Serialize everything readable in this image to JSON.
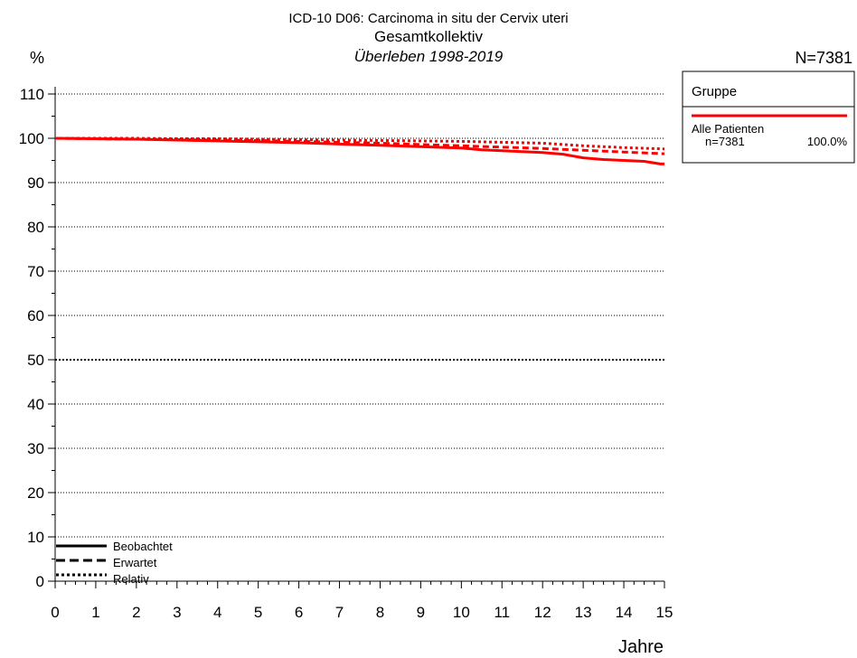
{
  "header": {
    "title_line1": "ICD-10 D06: Carcinoma in situ der Cervix uteri",
    "title_line2": "Gesamtkollektiv",
    "title_line3": "Überleben 1998-2019",
    "y_unit": "%",
    "n_total": "N=7381"
  },
  "legend": {
    "heading": "Gruppe",
    "group_name": "Alle Patienten",
    "group_n": "n=7381",
    "group_pct": "100.0%",
    "group_color": "#ff0000"
  },
  "line_style_legend": [
    "Beobachtet",
    "Erwartet",
    "Relativ"
  ],
  "chart_data": {
    "type": "line",
    "xlabel": "Jahre",
    "ylabel": "%",
    "xlim": [
      0,
      15
    ],
    "ylim": [
      0,
      110
    ],
    "x_ticks": [
      0,
      1,
      2,
      3,
      4,
      5,
      6,
      7,
      8,
      9,
      10,
      11,
      12,
      13,
      14,
      15
    ],
    "y_ticks": [
      0,
      10,
      20,
      30,
      40,
      50,
      60,
      70,
      80,
      90,
      100,
      110
    ],
    "grid": true,
    "series": [
      {
        "name": "Beobachtet",
        "style": "solid",
        "color": "#ff0000",
        "points": [
          [
            0,
            100
          ],
          [
            1,
            99.9
          ],
          [
            2,
            99.8
          ],
          [
            3,
            99.6
          ],
          [
            4,
            99.4
          ],
          [
            5,
            99.2
          ],
          [
            6,
            99.0
          ],
          [
            7,
            98.7
          ],
          [
            8,
            98.4
          ],
          [
            9,
            98.1
          ],
          [
            10,
            97.8
          ],
          [
            10.5,
            97.4
          ],
          [
            11,
            97.2
          ],
          [
            11.5,
            97.0
          ],
          [
            12,
            96.8
          ],
          [
            12.5,
            96.4
          ],
          [
            13,
            95.6
          ],
          [
            13.5,
            95.2
          ],
          [
            14,
            95.0
          ],
          [
            14.5,
            94.8
          ],
          [
            14.9,
            94.2
          ],
          [
            15,
            94.2
          ]
        ]
      },
      {
        "name": "Erwartet",
        "style": "dashed",
        "color": "#ff0000",
        "points": [
          [
            0,
            100
          ],
          [
            1,
            99.9
          ],
          [
            2,
            99.8
          ],
          [
            3,
            99.7
          ],
          [
            4,
            99.6
          ],
          [
            5,
            99.5
          ],
          [
            6,
            99.3
          ],
          [
            7,
            99.1
          ],
          [
            8,
            98.9
          ],
          [
            9,
            98.6
          ],
          [
            10,
            98.3
          ],
          [
            11,
            98.0
          ],
          [
            12,
            97.7
          ],
          [
            13,
            97.3
          ],
          [
            14,
            96.9
          ],
          [
            15,
            96.5
          ]
        ]
      },
      {
        "name": "Relativ",
        "style": "dotted",
        "color": "#ff0000",
        "points": [
          [
            0,
            100
          ],
          [
            1,
            100
          ],
          [
            2,
            100
          ],
          [
            3,
            99.9
          ],
          [
            4,
            99.9
          ],
          [
            5,
            99.8
          ],
          [
            6,
            99.7
          ],
          [
            7,
            99.6
          ],
          [
            8,
            99.5
          ],
          [
            9,
            99.4
          ],
          [
            10,
            99.3
          ],
          [
            11,
            99.1
          ],
          [
            12,
            98.9
          ],
          [
            13,
            98.3
          ],
          [
            14,
            97.9
          ],
          [
            15,
            97.6
          ]
        ]
      }
    ]
  }
}
